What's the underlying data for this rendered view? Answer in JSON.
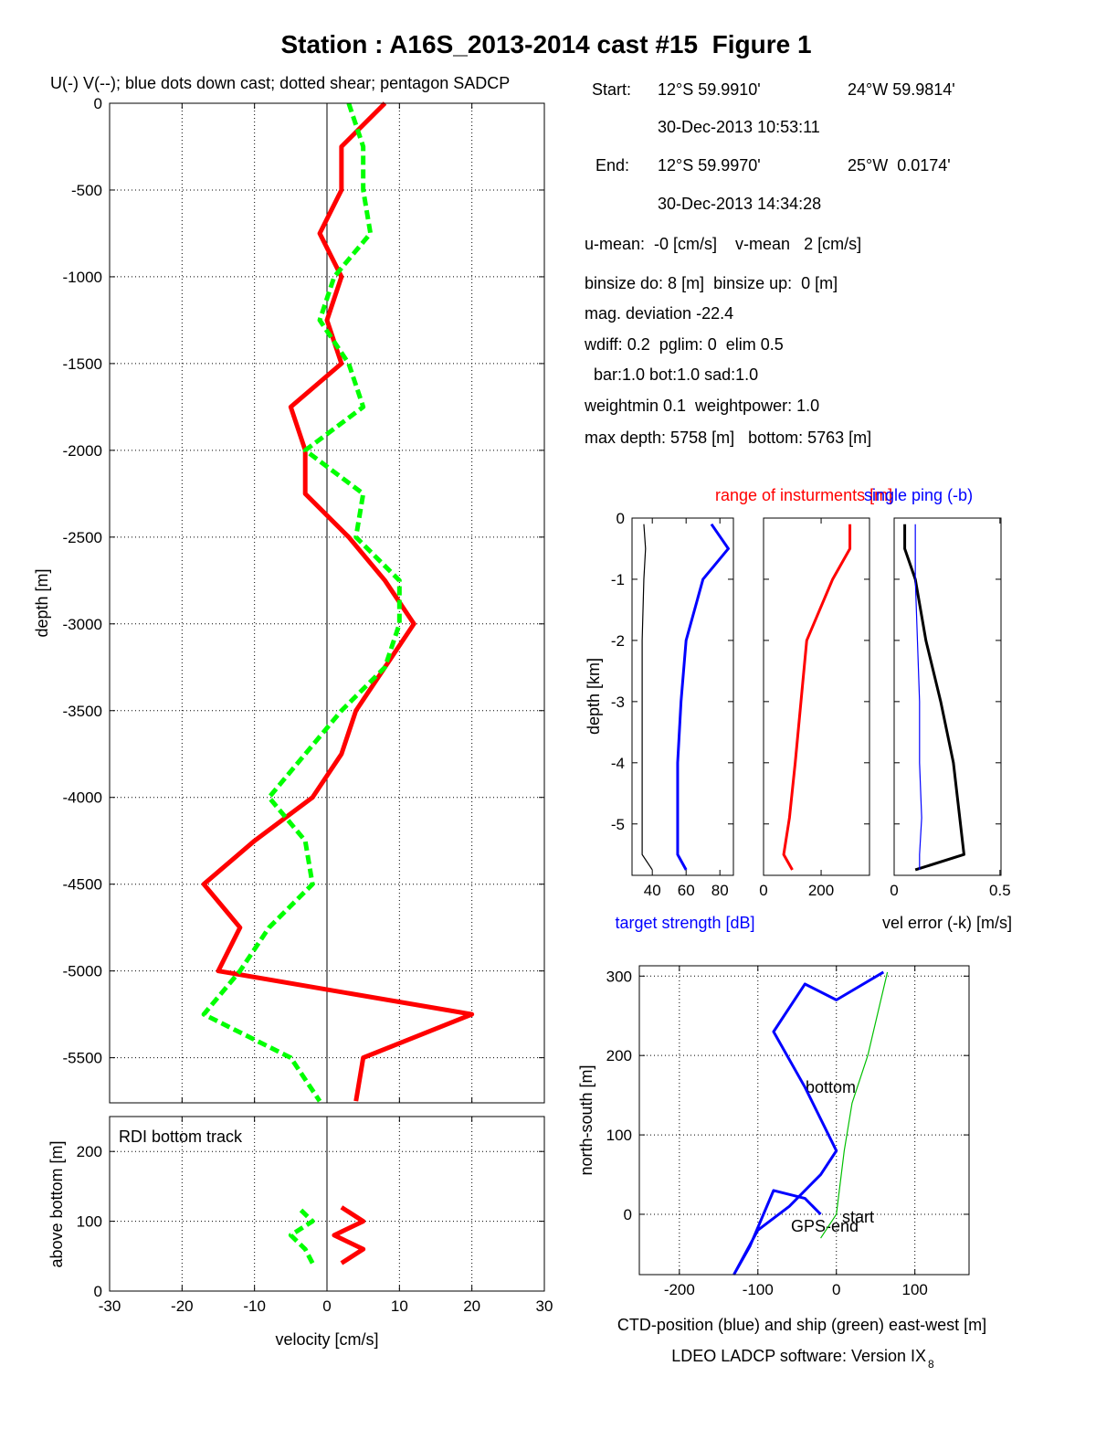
{
  "title": "Station : A16S_2013-2014 cast #15  Figure 1",
  "info": {
    "start_label": "Start:",
    "start_lat": "12°S 59.9910'",
    "start_lon": "24°W 59.9814'",
    "start_time": "30-Dec-2013 10:53:11",
    "end_label": "End:",
    "end_lat": "12°S 59.9970'",
    "end_lon": "25°W  0.0174'",
    "end_time": "30-Dec-2013 14:34:28",
    "lines": [
      "u-mean:  -0 [cm/s]    v-mean   2 [cm/s]",
      "binsize do: 8 [m]  binsize up:  0 [m]",
      "mag. deviation -22.4",
      "wdiff: 0.2  pglim: 0  elim 0.5",
      "  bar:1.0 bot:1.0 sad:1.0",
      "weightmin 0.1  weightpower: 1.0",
      "max depth: 5758 [m]   bottom: 5763 [m]"
    ]
  },
  "footer": "LDEO LADCP software: Version IX",
  "footer_sub": "8",
  "chart_data": [
    {
      "type": "line",
      "orientation": "horizontal",
      "title": "U(-) V(--); blue dots down cast; dotted shear; pentagon SADCP",
      "ylabel": "depth [m]",
      "xlim": [
        -30,
        30
      ],
      "ylim": [
        -5760,
        0
      ],
      "xticks": [
        -30,
        -20,
        -10,
        0,
        10,
        20,
        30
      ],
      "yticks": [
        0,
        -500,
        -1000,
        -1500,
        -2000,
        -2500,
        -3000,
        -3500,
        -4000,
        -4500,
        -5000,
        -5500
      ],
      "grid": true,
      "y": [
        0,
        -250,
        -500,
        -750,
        -1000,
        -1250,
        -1500,
        -1750,
        -2000,
        -2250,
        -2500,
        -2750,
        -3000,
        -3250,
        -3500,
        -3750,
        -4000,
        -4250,
        -4500,
        -4750,
        -5000,
        -5250,
        -5500,
        -5750
      ],
      "series": [
        {
          "color": "#ff0000",
          "values": [
            8,
            2,
            2,
            -1,
            2,
            0,
            2,
            -5,
            -3,
            -3,
            3,
            8,
            12,
            8,
            4,
            2,
            -2,
            -10,
            -17,
            -12,
            -15,
            20,
            5,
            4
          ]
        },
        {
          "color": "#00ff00",
          "dashed": true,
          "values": [
            3,
            5,
            5,
            6,
            1,
            -1,
            3,
            5,
            -3,
            5,
            4,
            10,
            10,
            8,
            2,
            -3,
            -8,
            -3,
            -2,
            -8,
            -12,
            -17,
            -5,
            -1
          ]
        }
      ]
    },
    {
      "type": "line",
      "orientation": "horizontal",
      "annotation": "RDI bottom track",
      "xlabel": "velocity [cm/s]",
      "ylabel": "above bottom [m]",
      "xlim": [
        -30,
        30
      ],
      "ylim": [
        0,
        250
      ],
      "xticks": [
        -30,
        -20,
        -10,
        0,
        10,
        20,
        30
      ],
      "yticks": [
        0,
        100,
        200
      ],
      "grid": true,
      "y": [
        40,
        60,
        80,
        100,
        120
      ],
      "series": [
        {
          "color": "#ff0000",
          "values": [
            2,
            5,
            1,
            5,
            2
          ]
        },
        {
          "color": "#00ff00",
          "dashed": true,
          "values": [
            -2,
            -3,
            -5,
            -2,
            -4
          ]
        }
      ]
    },
    {
      "type": "line",
      "orientation": "horizontal",
      "xlabel": "target strength [dB]",
      "ylabel": "depth [km]",
      "xlim": [
        28,
        88
      ],
      "ylim": [
        -5.84,
        0
      ],
      "xticks": [
        40,
        60,
        80
      ],
      "yticks": [
        0,
        -1,
        -2,
        -3,
        -4,
        -5
      ],
      "grid": false,
      "y": [
        -0.1,
        -0.5,
        -1,
        -2,
        -3,
        -4,
        -4.9,
        -5.5,
        -5.75
      ],
      "series": [
        {
          "color": "#0000ff",
          "values": [
            75,
            85,
            70,
            60,
            57,
            55,
            55,
            55,
            60
          ]
        },
        {
          "color": "#000000",
          "thin": true,
          "values": [
            35,
            36,
            35,
            34,
            34,
            34,
            34,
            34,
            40
          ]
        }
      ]
    },
    {
      "type": "line",
      "orientation": "horizontal",
      "title": "range of insturments [m]",
      "xlim": [
        0,
        368
      ],
      "ylim": [
        -5.84,
        0
      ],
      "xticks": [
        0,
        200
      ],
      "yticks": [
        0,
        -1,
        -2,
        -3,
        -4,
        -5
      ],
      "grid": false,
      "y": [
        -0.1,
        -0.5,
        -1,
        -2,
        -3,
        -4,
        -4.9,
        -5.5,
        -5.75
      ],
      "series": [
        {
          "color": "#ff0000",
          "values": [
            300,
            300,
            240,
            150,
            130,
            110,
            90,
            70,
            100
          ]
        }
      ]
    },
    {
      "type": "line",
      "orientation": "horizontal",
      "title": "single ping (-b)",
      "xlabel": "vel error (-k) [m/s]",
      "xlim": [
        0,
        0.505
      ],
      "ylim": [
        -5.84,
        0
      ],
      "xticks": [
        0,
        0.5
      ],
      "yticks": [
        0,
        -1,
        -2,
        -3,
        -4,
        -5
      ],
      "grid": false,
      "y": [
        -0.1,
        -0.5,
        -1,
        -2,
        -3,
        -4,
        -4.9,
        -5.5,
        -5.75
      ],
      "series": [
        {
          "color": "#000000",
          "values": [
            0.05,
            0.05,
            0.1,
            0.15,
            0.22,
            0.28,
            0.31,
            0.33,
            0.1
          ]
        },
        {
          "color": "#0000ff",
          "thin": true,
          "values": [
            0.1,
            0.1,
            0.1,
            0.11,
            0.12,
            0.12,
            0.13,
            0.12,
            0.12
          ]
        }
      ]
    },
    {
      "type": "line",
      "orientation": "xy",
      "xlabel": "CTD-position (blue) and ship (green) east-west [m]",
      "ylabel": "north-south [m]",
      "xlim": [
        -251,
        169
      ],
      "ylim": [
        -76,
        313
      ],
      "xticks": [
        -200,
        -100,
        0,
        100
      ],
      "yticks": [
        0,
        100,
        200,
        300
      ],
      "grid": true,
      "annotations": [
        "bottom",
        "start",
        "GPS-end"
      ],
      "series": [
        {
          "color": "#0000ff",
          "x": [
            60,
            0,
            -40,
            -80,
            -40,
            0,
            -20,
            -60,
            -100,
            -130,
            -110,
            -80,
            -40,
            -20
          ],
          "values": [
            305,
            270,
            290,
            230,
            160,
            80,
            50,
            10,
            -20,
            -75,
            -40,
            30,
            20,
            0
          ]
        },
        {
          "color": "#00c000",
          "thin": true,
          "x": [
            65,
            40,
            20,
            10,
            0,
            -20
          ],
          "values": [
            305,
            200,
            140,
            80,
            0,
            -30
          ]
        }
      ]
    }
  ]
}
